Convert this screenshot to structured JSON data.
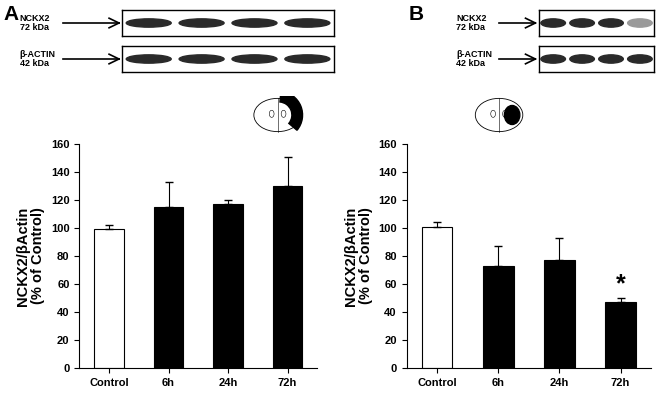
{
  "chart_data": [
    {
      "type": "bar",
      "panel_label": "A",
      "blot_labels": [
        "NCKX2\n72 kDa",
        "β-ACTIN\n42 kDa"
      ],
      "y_label": "NCKX2/βActin\n(% of Control)",
      "categories": [
        "Control",
        "6h",
        "24h",
        "72h"
      ],
      "values": [
        99,
        115,
        117,
        130
      ],
      "errors": [
        3,
        18,
        3,
        21
      ],
      "colors": [
        "#ffffff",
        "#000000",
        "#000000",
        "#000000"
      ],
      "ylim": [
        0,
        160
      ],
      "yticks": [
        0,
        20,
        40,
        60,
        80,
        100,
        120,
        140,
        160
      ]
    },
    {
      "type": "bar",
      "panel_label": "B",
      "blot_labels": [
        "NCKX2\n72 kDa",
        "β-ACTIN\n42 kDa"
      ],
      "y_label": "NCKX2/βActin\n(% of Control)",
      "categories": [
        "Control",
        "6h",
        "24h",
        "72h"
      ],
      "values": [
        101,
        73,
        77,
        47
      ],
      "errors": [
        3,
        14,
        16,
        3
      ],
      "colors": [
        "#ffffff",
        "#000000",
        "#000000",
        "#000000"
      ],
      "ylim": [
        0,
        160
      ],
      "yticks": [
        0,
        20,
        40,
        60,
        80,
        100,
        120,
        140,
        160
      ],
      "annotations": [
        {
          "text": "*",
          "category": "72h"
        }
      ]
    }
  ]
}
